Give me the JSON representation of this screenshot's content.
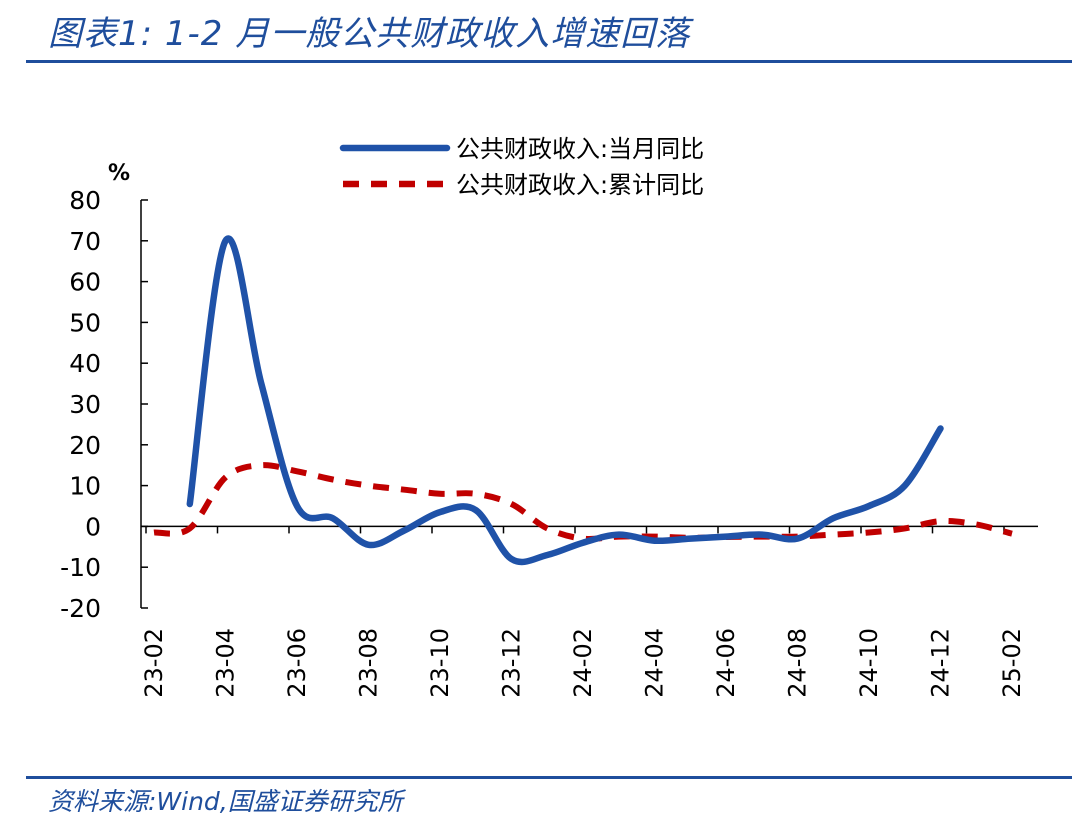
{
  "title": "图表1:  1-2 月一般公共财政收入增速回落",
  "source": "资料来源:Wind,国盛证券研究所",
  "colors": {
    "accent": "#1f4e9c",
    "series_monthly": "#1f52a8",
    "series_cumulative": "#c00000"
  },
  "chart_data": {
    "type": "line",
    "unit_label": "%",
    "ylim": [
      -20,
      80
    ],
    "y_ticks": [
      80,
      70,
      60,
      50,
      40,
      30,
      20,
      10,
      0,
      -10,
      -20
    ],
    "categories": [
      "23-02",
      "23-03",
      "23-04",
      "23-05",
      "23-06",
      "23-07",
      "23-08",
      "23-09",
      "23-10",
      "23-11",
      "23-12",
      "24-01",
      "24-02",
      "24-03",
      "24-04",
      "24-05",
      "24-06",
      "24-07",
      "24-08",
      "24-09",
      "24-10",
      "24-11",
      "24-12",
      "25-01",
      "25-02"
    ],
    "x_tick_labels": [
      "23-02",
      "23-04",
      "23-06",
      "23-08",
      "23-10",
      "23-12",
      "24-02",
      "24-04",
      "24-06",
      "24-08",
      "24-10",
      "24-12",
      "25-02"
    ],
    "legend_position": "top-center",
    "grid": false,
    "series": [
      {
        "name": "公共财政收入:当月同比",
        "style": "solid",
        "values": [
          null,
          5.5,
          70,
          35,
          5,
          2,
          -4.5,
          -1,
          3.5,
          4,
          -8,
          -7,
          -4,
          -2,
          -3.5,
          -3,
          -2.5,
          -2,
          -3,
          2,
          5,
          10,
          24,
          null,
          null
        ]
      },
      {
        "name": "公共财政收入:累计同比",
        "style": "dashed",
        "values": [
          -1.5,
          -0.5,
          12,
          15,
          13.5,
          11.5,
          10,
          9,
          8,
          8,
          5.5,
          -0.5,
          -3,
          -2.5,
          -2.5,
          -2.8,
          -2.6,
          -2.5,
          -2.5,
          -2,
          -1.5,
          -0.5,
          1.3,
          0.5,
          -1.8
        ]
      }
    ]
  }
}
